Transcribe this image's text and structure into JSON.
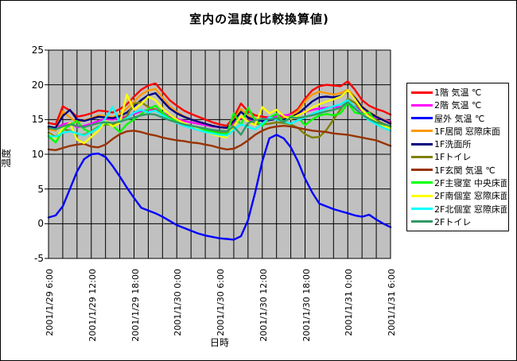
{
  "chart_data": {
    "type": "line",
    "title": "室内の温度(比較換算値)",
    "xlabel": "日時",
    "ylabel": "温度",
    "ylim": [
      -5,
      25
    ],
    "y_ticks": [
      "25",
      "20",
      "15",
      "10",
      "5",
      "0",
      "-5"
    ],
    "x_start_label": "2001/1/29 6:00",
    "x_end_label": "2001/1/31 6:00",
    "x_interval_hours": 1,
    "x_count": 49,
    "x_tick_labels": [
      "2001/1/29 6:00",
      "2001/1/29 12:00",
      "2001/1/29 18:00",
      "2001/1/30 0:00",
      "2001/1/30 6:00",
      "2001/1/30 12:00",
      "2001/1/30 18:00",
      "2001/1/31 0:00",
      "2001/1/31 6:00"
    ],
    "grid": {
      "vertical_every_hours": 2,
      "horizontal_every_deg": 5,
      "color": "#000000"
    },
    "plot_bg": "#C0C0C0",
    "legend_position": "right",
    "series": [
      {
        "name": "1階 気温 ℃",
        "color": "#FF0000",
        "values": [
          14.5,
          14.3,
          16.9,
          16.3,
          15.4,
          15.6,
          15.9,
          16.3,
          16.2,
          16.0,
          16.5,
          17.2,
          18.3,
          19.3,
          19.9,
          20.2,
          19.0,
          17.8,
          17.0,
          16.3,
          15.8,
          15.4,
          15.0,
          14.6,
          14.3,
          14.1,
          15.3,
          17.3,
          16.2,
          15.6,
          15.4,
          15.3,
          15.5,
          15.4,
          15.8,
          16.5,
          18.0,
          19.2,
          19.8,
          20.0,
          19.9,
          19.8,
          20.5,
          19.3,
          17.8,
          17.0,
          16.5,
          16.2,
          15.7
        ]
      },
      {
        "name": "2階 気温 ℃",
        "color": "#FF00FF",
        "values": [
          13.9,
          13.7,
          14.3,
          14.5,
          13.9,
          14.1,
          14.4,
          14.8,
          15.1,
          15.0,
          15.2,
          15.5,
          15.8,
          16.2,
          16.4,
          16.5,
          16.0,
          15.5,
          15.1,
          14.8,
          14.6,
          14.4,
          14.2,
          14.0,
          13.9,
          13.8,
          14.5,
          15.2,
          14.9,
          14.8,
          15.0,
          15.3,
          15.5,
          15.6,
          15.7,
          15.9,
          16.1,
          16.4,
          16.6,
          16.7,
          16.8,
          16.8,
          17.4,
          16.9,
          16.2,
          15.7,
          15.3,
          15.0,
          14.7
        ]
      },
      {
        "name": "屋外 気温 ℃",
        "color": "#0000FF",
        "values": [
          0.9,
          1.2,
          2.5,
          5.0,
          7.5,
          9.3,
          10.0,
          10.1,
          9.6,
          8.3,
          6.8,
          5.2,
          3.7,
          2.3,
          1.9,
          1.5,
          1.0,
          0.4,
          -0.2,
          -0.6,
          -1.0,
          -1.4,
          -1.7,
          -1.9,
          -2.1,
          -2.2,
          -2.3,
          -1.8,
          0.5,
          4.5,
          9.0,
          12.3,
          12.8,
          12.3,
          11.0,
          9.0,
          6.5,
          4.5,
          2.9,
          2.5,
          2.1,
          1.8,
          1.5,
          1.2,
          1.0,
          1.3,
          0.6,
          0.0,
          -0.5
        ]
      },
      {
        "name": "1F居間 窓際床面",
        "color": "#FF9900",
        "values": [
          13.6,
          13.4,
          16.2,
          15.3,
          14.6,
          14.9,
          15.2,
          15.6,
          15.5,
          15.3,
          15.8,
          16.6,
          17.6,
          18.6,
          19.2,
          19.4,
          18.2,
          16.9,
          16.1,
          15.5,
          15.0,
          14.7,
          14.4,
          14.1,
          13.9,
          13.8,
          15.0,
          16.5,
          15.6,
          15.1,
          15.0,
          15.0,
          15.2,
          15.1,
          15.5,
          16.2,
          17.6,
          18.6,
          19.0,
          18.8,
          18.6,
          18.8,
          19.3,
          18.3,
          16.9,
          16.1,
          15.5,
          15.0,
          14.5
        ]
      },
      {
        "name": "1F洗面所",
        "color": "#000080",
        "values": [
          14.0,
          13.8,
          15.5,
          16.4,
          15.0,
          14.8,
          15.1,
          15.4,
          15.3,
          15.2,
          15.5,
          16.0,
          16.9,
          17.8,
          18.5,
          18.8,
          17.7,
          16.6,
          15.9,
          15.4,
          15.0,
          14.7,
          14.4,
          14.1,
          13.9,
          13.8,
          14.8,
          16.1,
          15.3,
          14.9,
          14.8,
          14.9,
          15.1,
          15.0,
          15.3,
          15.8,
          16.7,
          17.6,
          18.2,
          18.3,
          18.2,
          18.4,
          19.1,
          18.1,
          16.8,
          16.0,
          15.4,
          14.9,
          14.4
        ]
      },
      {
        "name": "1Fトイレ",
        "color": "#808000",
        "values": [
          13.1,
          12.5,
          13.6,
          13.4,
          12.9,
          12.8,
          13.3,
          14.0,
          14.3,
          14.2,
          14.6,
          15.5,
          17.3,
          17.5,
          16.8,
          16.4,
          15.8,
          15.2,
          14.7,
          14.3,
          14.0,
          13.7,
          13.5,
          13.3,
          13.1,
          13.0,
          14.2,
          15.5,
          14.8,
          14.4,
          14.3,
          14.4,
          14.6,
          14.5,
          14.3,
          13.8,
          12.9,
          12.4,
          12.5,
          13.5,
          15.0,
          16.5,
          18.0,
          17.4,
          16.3,
          15.5,
          14.9,
          14.4,
          14.0
        ]
      },
      {
        "name": "1F玄関 気温 ℃",
        "color": "#993300",
        "values": [
          10.7,
          10.6,
          10.9,
          11.2,
          11.4,
          11.5,
          11.1,
          11.0,
          11.4,
          12.2,
          12.9,
          13.3,
          13.4,
          13.2,
          12.9,
          12.7,
          12.4,
          12.2,
          12.0,
          11.9,
          11.7,
          11.6,
          11.4,
          11.2,
          10.9,
          10.7,
          10.8,
          11.3,
          12.0,
          12.8,
          13.4,
          13.8,
          14.0,
          14.1,
          14.0,
          13.8,
          13.6,
          13.4,
          13.3,
          13.2,
          13.0,
          12.9,
          12.8,
          12.6,
          12.4,
          12.2,
          12.0,
          11.6,
          11.2
        ]
      },
      {
        "name": "2F主寝室 中央床面",
        "color": "#00FF00",
        "values": [
          12.6,
          11.7,
          13.5,
          14.2,
          14.8,
          13.6,
          13.1,
          14.0,
          14.5,
          14.1,
          13.2,
          14.3,
          15.0,
          15.8,
          16.5,
          17.0,
          16.0,
          15.2,
          14.8,
          14.4,
          14.1,
          13.8,
          13.5,
          13.2,
          13.0,
          12.9,
          15.9,
          14.2,
          16.7,
          14.9,
          14.1,
          15.3,
          15.8,
          14.6,
          15.5,
          15.3,
          14.2,
          15.0,
          15.6,
          15.8,
          15.6,
          15.9,
          17.4,
          16.0,
          15.8,
          16.0,
          14.6,
          14.1,
          13.9
        ]
      },
      {
        "name": "2F南個室 窓際床面",
        "color": "#FFFF00",
        "values": [
          12.9,
          12.3,
          13.8,
          14.5,
          12.1,
          11.6,
          12.5,
          13.4,
          14.8,
          14.0,
          14.5,
          18.6,
          16.4,
          17.2,
          18.3,
          17.8,
          16.6,
          15.7,
          15.0,
          14.5,
          14.0,
          13.6,
          13.2,
          12.9,
          12.6,
          12.4,
          14.0,
          15.5,
          14.7,
          14.2,
          16.8,
          15.9,
          16.4,
          15.5,
          15.1,
          15.6,
          16.1,
          16.7,
          17.2,
          17.6,
          17.9,
          18.3,
          19.2,
          17.9,
          16.4,
          15.4,
          14.7,
          14.1,
          13.7
        ]
      },
      {
        "name": "2F北個室 窓際床面",
        "color": "#00FFFF",
        "values": [
          12.7,
          12.5,
          13.1,
          13.3,
          13.0,
          12.7,
          13.2,
          13.8,
          15.2,
          16.8,
          14.6,
          15.2,
          16.0,
          16.4,
          16.0,
          16.3,
          15.6,
          15.0,
          14.5,
          14.1,
          13.8,
          13.5,
          13.2,
          13.0,
          12.8,
          12.7,
          13.5,
          14.3,
          13.9,
          13.6,
          14.4,
          15.3,
          15.0,
          14.7,
          14.4,
          14.9,
          15.3,
          15.8,
          16.2,
          16.6,
          16.9,
          17.2,
          17.8,
          16.8,
          15.7,
          14.9,
          14.3,
          13.8,
          13.4
        ]
      },
      {
        "name": "2Fトイレ",
        "color": "#339966",
        "values": [
          13.8,
          13.6,
          14.0,
          14.3,
          14.1,
          13.9,
          14.2,
          14.5,
          14.6,
          14.5,
          14.7,
          15.0,
          15.3,
          15.6,
          15.8,
          15.7,
          15.3,
          14.9,
          14.6,
          14.3,
          14.1,
          13.9,
          13.7,
          13.5,
          13.4,
          13.3,
          14.0,
          12.8,
          14.5,
          14.9,
          15.1,
          15.0,
          15.2,
          14.6,
          15.3,
          15.2,
          15.4,
          15.6,
          15.9,
          16.2,
          16.4,
          16.7,
          17.5,
          16.6,
          15.7,
          15.1,
          14.6,
          14.3,
          14.1
        ]
      }
    ]
  }
}
